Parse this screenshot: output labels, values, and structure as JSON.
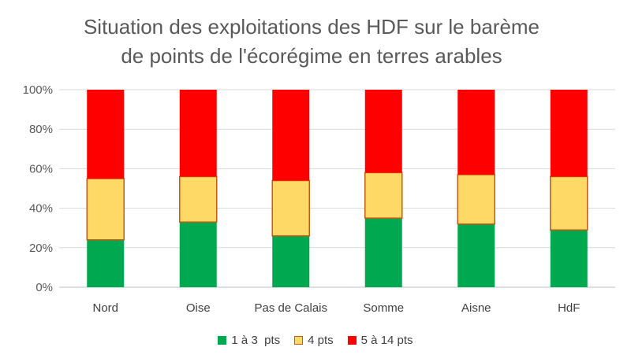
{
  "chart_data": {
    "type": "bar",
    "stacked": true,
    "percent": true,
    "title_lines": [
      "Situation des exploitations des HDF sur le barème",
      "de points de l'écorégime en terres arables"
    ],
    "categories": [
      "Nord",
      "Oise",
      "Pas de Calais",
      "Somme",
      "Aisne",
      "HdF"
    ],
    "series": [
      {
        "name": "1 à 3  pts",
        "color": "#00a94f",
        "values": [
          24,
          33,
          26,
          35,
          32,
          29
        ]
      },
      {
        "name": "4 pts",
        "color": "#ffd966",
        "border": "#c55a11",
        "values": [
          31,
          23,
          28,
          23,
          25,
          27
        ]
      },
      {
        "name": "5 à 14 pts",
        "color": "#ff0000",
        "values": [
          45,
          44,
          46,
          42,
          43,
          44
        ]
      }
    ],
    "y_ticks": [
      "0%",
      "20%",
      "40%",
      "60%",
      "80%",
      "100%"
    ],
    "ylim": [
      0,
      100
    ],
    "grid": true,
    "legend_position": "bottom"
  }
}
